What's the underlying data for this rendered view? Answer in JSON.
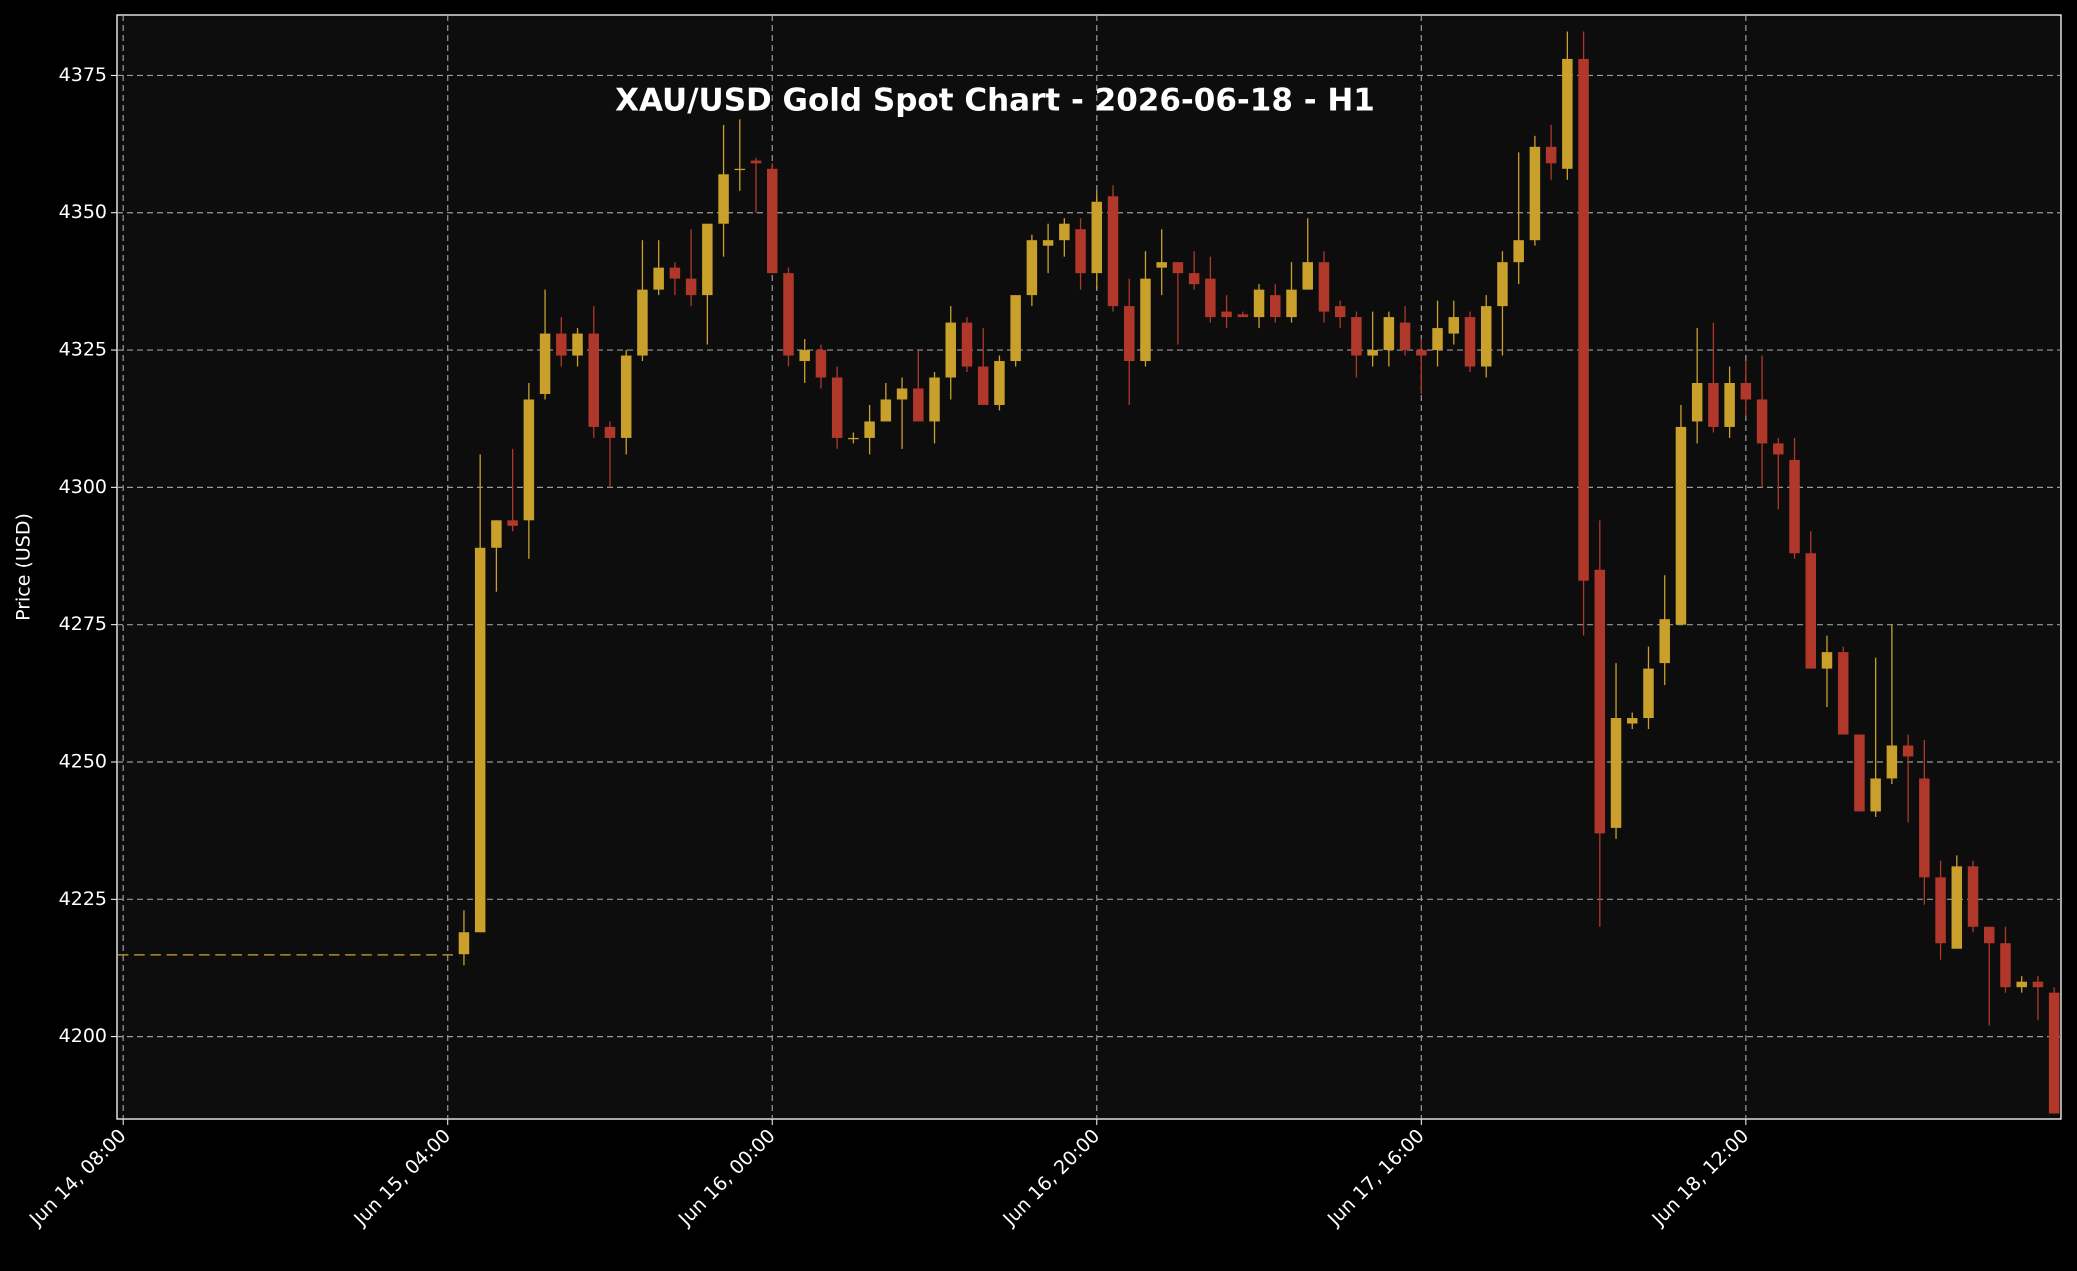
{
  "chart_data": {
    "type": "candlestick",
    "title": "XAU/USD Gold Spot Chart - 2026-06-18 - H1",
    "y_label": "Price (USD)",
    "x": [
      "Jun 14, 08:00",
      "Jun 14, 09:00",
      "Jun 14, 10:00",
      "Jun 14, 11:00",
      "Jun 14, 12:00",
      "Jun 14, 13:00",
      "Jun 14, 14:00",
      "Jun 14, 15:00",
      "Jun 14, 16:00",
      "Jun 14, 17:00",
      "Jun 14, 18:00",
      "Jun 14, 19:00",
      "Jun 14, 20:00",
      "Jun 14, 21:00",
      "Jun 14, 22:00",
      "Jun 14, 23:00",
      "Jun 15, 00:00",
      "Jun 15, 01:00",
      "Jun 15, 02:00",
      "Jun 15, 03:00",
      "Jun 15, 04:00",
      "Jun 15, 05:00",
      "Jun 15, 06:00",
      "Jun 15, 07:00",
      "Jun 15, 08:00",
      "Jun 15, 09:00",
      "Jun 15, 10:00",
      "Jun 15, 11:00",
      "Jun 15, 12:00",
      "Jun 15, 13:00",
      "Jun 15, 14:00",
      "Jun 15, 15:00",
      "Jun 15, 16:00",
      "Jun 15, 17:00",
      "Jun 15, 18:00",
      "Jun 15, 19:00",
      "Jun 15, 20:00",
      "Jun 15, 21:00",
      "Jun 15, 22:00",
      "Jun 15, 23:00",
      "Jun 16, 00:00",
      "Jun 16, 01:00",
      "Jun 16, 02:00",
      "Jun 16, 03:00",
      "Jun 16, 04:00",
      "Jun 16, 05:00",
      "Jun 16, 06:00",
      "Jun 16, 07:00",
      "Jun 16, 08:00",
      "Jun 16, 09:00",
      "Jun 16, 10:00",
      "Jun 16, 11:00",
      "Jun 16, 12:00",
      "Jun 16, 13:00",
      "Jun 16, 14:00",
      "Jun 16, 15:00",
      "Jun 16, 16:00",
      "Jun 16, 17:00",
      "Jun 16, 18:00",
      "Jun 16, 19:00",
      "Jun 16, 20:00",
      "Jun 16, 21:00",
      "Jun 16, 22:00",
      "Jun 16, 23:00",
      "Jun 17, 00:00",
      "Jun 17, 01:00",
      "Jun 17, 02:00",
      "Jun 17, 03:00",
      "Jun 17, 04:00",
      "Jun 17, 05:00",
      "Jun 17, 06:00",
      "Jun 17, 07:00",
      "Jun 17, 08:00",
      "Jun 17, 09:00",
      "Jun 17, 10:00",
      "Jun 17, 11:00",
      "Jun 17, 12:00",
      "Jun 17, 13:00",
      "Jun 17, 14:00",
      "Jun 17, 15:00",
      "Jun 17, 16:00",
      "Jun 17, 17:00",
      "Jun 17, 18:00",
      "Jun 17, 19:00",
      "Jun 17, 20:00",
      "Jun 17, 21:00",
      "Jun 17, 22:00",
      "Jun 17, 23:00",
      "Jun 18, 00:00",
      "Jun 18, 01:00",
      "Jun 18, 02:00",
      "Jun 18, 03:00",
      "Jun 18, 04:00",
      "Jun 18, 05:00",
      "Jun 18, 06:00",
      "Jun 18, 07:00",
      "Jun 18, 08:00",
      "Jun 18, 09:00",
      "Jun 18, 10:00",
      "Jun 18, 11:00",
      "Jun 18, 12:00",
      "Jun 18, 13:00",
      "Jun 18, 14:00",
      "Jun 18, 15:00",
      "Jun 18, 16:00",
      "Jun 18, 17:00",
      "Jun 18, 18:00",
      "Jun 18, 19:00",
      "Jun 18, 20:00",
      "Jun 18, 21:00",
      "Jun 18, 22:00",
      "Jun 18, 23:00",
      "Jun 19, 00:00",
      "Jun 19, 01:00",
      "Jun 19, 02:00",
      "Jun 19, 03:00",
      "Jun 19, 04:00",
      "Jun 19, 05:00",
      "Jun 19, 06:00",
      "Jun 19, 07:00"
    ],
    "open": [
      4215,
      4215,
      4215,
      4215,
      4215,
      4215,
      4215,
      4215,
      4215,
      4215,
      4215,
      4215,
      4215,
      4215,
      4215,
      4215,
      4215,
      4215,
      4215,
      4215,
      4215,
      4215,
      4219,
      4289,
      4294,
      4294,
      4317,
      4328,
      4324,
      4328,
      4311,
      4309,
      4324,
      4336,
      4340,
      4338,
      4335,
      4348,
      4358,
      4359.5,
      4358,
      4339,
      4323,
      4325,
      4320,
      4309,
      4309,
      4312,
      4316,
      4318,
      4312,
      4320,
      4330,
      4322,
      4315,
      4323,
      4335,
      4344,
      4345,
      4347,
      4339,
      4353,
      4333,
      4323,
      4340,
      4341,
      4339,
      4338,
      4332,
      4331.5,
      4331,
      4335,
      4331,
      4336,
      4341,
      4333,
      4331,
      4324,
      4325,
      4330,
      4325,
      4325,
      4328,
      4331,
      4322,
      4333,
      4341,
      4345,
      4362,
      4358,
      4378,
      4285,
      4238,
      4257,
      4258,
      4268,
      4275,
      4312,
      4319,
      4311,
      4319,
      4316,
      4308,
      4305,
      4288,
      4267,
      4270,
      4255,
      4241,
      4247,
      4253,
      4247,
      4229,
      4216,
      4231,
      4220,
      4217,
      4209,
      4210,
      4208
    ],
    "high": [
      4215,
      4215,
      4215,
      4215,
      4215,
      4215,
      4215,
      4215,
      4215,
      4215,
      4215,
      4215,
      4215,
      4215,
      4215,
      4215,
      4215,
      4215,
      4215,
      4215,
      4215,
      4223,
      4306,
      4294,
      4307,
      4319,
      4336,
      4331,
      4329,
      4333,
      4312,
      4325,
      4345,
      4345,
      4341,
      4347,
      4348,
      4366,
      4367,
      4360,
      4359,
      4340,
      4327,
      4326,
      4322,
      4310,
      4315,
      4319,
      4320,
      4325,
      4321,
      4333,
      4331,
      4329,
      4324,
      4335,
      4346,
      4348,
      4349,
      4349,
      4354,
      4355,
      4338,
      4343,
      4347,
      4341,
      4343,
      4342,
      4335,
      4332,
      4337,
      4337,
      4341,
      4349,
      4343,
      4334,
      4332,
      4332,
      4332,
      4333,
      4327,
      4334,
      4334,
      4332,
      4335,
      4343,
      4361,
      4364,
      4366,
      4383,
      4383,
      4294,
      4268,
      4259,
      4271,
      4284,
      4315,
      4329,
      4330,
      4322,
      4323,
      4324,
      4309,
      4309,
      4292,
      4273,
      4271,
      4255,
      4269,
      4275,
      4255,
      4254,
      4232,
      4233,
      4232,
      4220,
      4220,
      4211,
      4211,
      4209
    ],
    "low": [
      4215,
      4215,
      4215,
      4215,
      4215,
      4215,
      4215,
      4215,
      4215,
      4215,
      4215,
      4215,
      4215,
      4215,
      4215,
      4215,
      4215,
      4215,
      4215,
      4215,
      4215,
      4213,
      4219,
      4281,
      4292,
      4287,
      4316,
      4322,
      4322,
      4309,
      4300,
      4306,
      4323,
      4335,
      4335,
      4333,
      4326,
      4342,
      4354,
      4350,
      4339,
      4322,
      4319,
      4318,
      4307,
      4308,
      4306,
      4312,
      4307,
      4312,
      4308,
      4316,
      4321,
      4315,
      4314,
      4322,
      4333,
      4339,
      4342,
      4336,
      4336,
      4332,
      4315,
      4322,
      4335,
      4326,
      4336,
      4330,
      4329,
      4331,
      4329,
      4330,
      4330,
      4336,
      4330,
      4329,
      4320,
      4322,
      4322,
      4324,
      4317,
      4322,
      4326,
      4321,
      4320,
      4324,
      4337,
      4344,
      4356,
      4356,
      4273,
      4220,
      4236,
      4256,
      4256,
      4264,
      4275,
      4308,
      4310,
      4309,
      4313,
      4300,
      4296,
      4287,
      4267,
      4260,
      4255,
      4241,
      4240,
      4246,
      4239,
      4224,
      4214,
      4216,
      4219,
      4202,
      4208,
      4208,
      4203,
      4186
    ],
    "close": [
      4215,
      4215,
      4215,
      4215,
      4215,
      4215,
      4215,
      4215,
      4215,
      4215,
      4215,
      4215,
      4215,
      4215,
      4215,
      4215,
      4215,
      4215,
      4215,
      4215,
      4215,
      4219,
      4289,
      4294,
      4293,
      4316,
      4328,
      4324,
      4328,
      4311,
      4309,
      4324,
      4336,
      4340,
      4338,
      4335,
      4348,
      4357,
      4358,
      4359,
      4339,
      4324,
      4325,
      4320,
      4309,
      4309,
      4312,
      4316,
      4318,
      4312,
      4320,
      4330,
      4322,
      4315,
      4323,
      4335,
      4345,
      4345,
      4348,
      4339,
      4352,
      4333,
      4323,
      4338,
      4341,
      4339,
      4337,
      4331,
      4331,
      4331,
      4336,
      4331,
      4336,
      4341,
      4332,
      4331,
      4324,
      4325,
      4331,
      4325,
      4324,
      4329,
      4331,
      4322,
      4333,
      4341,
      4345,
      4362,
      4359,
      4378,
      4283,
      4237,
      4258,
      4258,
      4267,
      4276,
      4311,
      4319,
      4311,
      4319,
      4316,
      4308,
      4306,
      4288,
      4267,
      4270,
      4255,
      4241,
      4247,
      4253,
      4251,
      4229,
      4217,
      4231,
      4220,
      4217,
      4209,
      4210,
      4209,
      4186
    ],
    "up_color": "#c9a02b",
    "down_color": "#b0382a",
    "xticks": [
      "Jun 14, 08:00",
      "Jun 15, 04:00",
      "Jun 16, 00:00",
      "Jun 16, 20:00",
      "Jun 17, 16:00",
      "Jun 18, 12:00"
    ],
    "ylim": [
      4185,
      4386
    ],
    "yticks": [
      4200,
      4225,
      4250,
      4275,
      4300,
      4325,
      4350,
      4375
    ],
    "grid": true
  }
}
